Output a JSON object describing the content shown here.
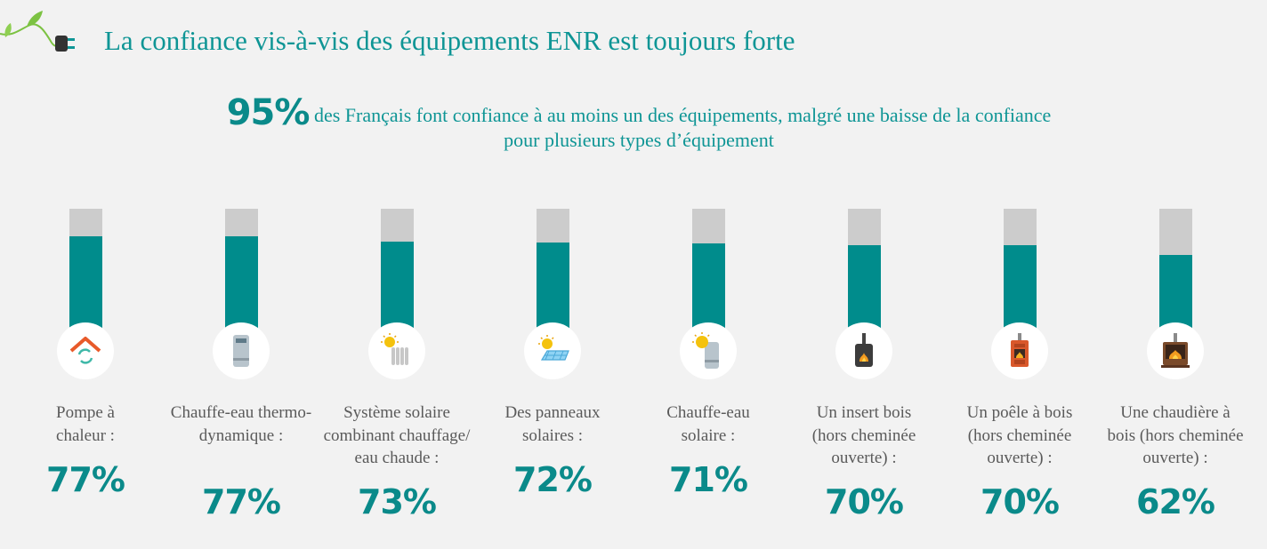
{
  "header": {
    "title": "La confiance vis-à-vis des équipements ENR est toujours forte",
    "accent": "#0e9595"
  },
  "subtitle": {
    "highlight": "95%",
    "text": "des Français font confiance à au moins un des équipements, malgré une baisse de la confiance pour plusieurs types d’équipement"
  },
  "chart_data": {
    "type": "bar",
    "categories": [
      "Pompe à chaleur :",
      "Chauffe-eau thermo-dynamique :",
      "Système solaire combinant chauffage/ eau chaude :",
      "Des panneaux solaires :",
      "Chauffe-eau solaire :",
      "Un insert bois (hors cheminée ouverte) :",
      "Un poêle à bois (hors cheminée ouverte) :",
      "Une chaudière à bois (hors cheminée ouverte) :"
    ],
    "values": [
      77,
      77,
      73,
      72,
      71,
      70,
      70,
      62
    ],
    "value_labels": [
      "77%",
      "77%",
      "73%",
      "72%",
      "71%",
      "70%",
      "70%",
      "62%"
    ],
    "icons": [
      "heat-pump-icon",
      "water-heater-icon",
      "solar-radiator-icon",
      "solar-panel-icon",
      "solar-water-heater-icon",
      "wood-insert-icon",
      "wood-stove-icon",
      "wood-boiler-icon"
    ],
    "ylim": [
      0,
      100
    ],
    "colors": {
      "fill": "#008c8c",
      "track": "#cccccc"
    }
  }
}
